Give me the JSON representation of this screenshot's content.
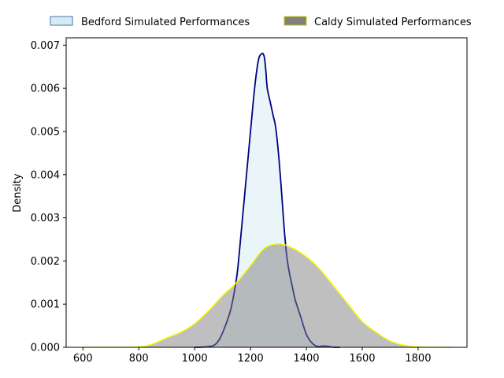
{
  "chart_data": {
    "type": "area",
    "title": "",
    "xlabel": "",
    "ylabel": "Density",
    "xlim": [
      540,
      1975
    ],
    "ylim": [
      0,
      0.00717
    ],
    "xticks": [
      600,
      800,
      1000,
      1200,
      1400,
      1600,
      1800
    ],
    "yticks": [
      0.0,
      0.001,
      0.002,
      0.003,
      0.004,
      0.005,
      0.006,
      0.007
    ],
    "ytick_labels": [
      "0.000",
      "0.001",
      "0.002",
      "0.003",
      "0.004",
      "0.005",
      "0.006",
      "0.007"
    ],
    "grid": false,
    "legend_position": "top, outside plot, horizontal",
    "series": [
      {
        "name": "Bedford Simulated Performances",
        "line_color": "#000080",
        "fill_color": "#add8e6",
        "fill_opacity": 0.25,
        "x": [
          1000,
          1040,
          1070,
          1090,
          1110,
          1130,
          1150,
          1160,
          1170,
          1180,
          1190,
          1200,
          1210,
          1220,
          1230,
          1240,
          1245,
          1250,
          1255,
          1260,
          1270,
          1280,
          1290,
          1300,
          1310,
          1320,
          1330,
          1340,
          1350,
          1360,
          1380,
          1400,
          1420,
          1440,
          1460,
          1480,
          1500,
          1520
        ],
        "y": [
          0.0,
          1e-05,
          5e-05,
          0.0002,
          0.0005,
          0.0009,
          0.0016,
          0.0022,
          0.0029,
          0.0036,
          0.0043,
          0.005,
          0.0057,
          0.0063,
          0.0067,
          0.0068,
          0.0068,
          0.0067,
          0.0064,
          0.006,
          0.0057,
          0.0054,
          0.0051,
          0.0045,
          0.0037,
          0.0028,
          0.0021,
          0.0017,
          0.0014,
          0.0011,
          0.0007,
          0.0003,
          0.0001,
          2e-05,
          3e-05,
          2e-05,
          0.0,
          0.0
        ]
      },
      {
        "name": "Caldy Simulated Performances",
        "line_color": "#ffff00",
        "fill_color": "#808080",
        "fill_opacity": 0.5,
        "x": [
          600,
          700,
          800,
          850,
          900,
          950,
          1000,
          1050,
          1100,
          1150,
          1200,
          1250,
          1300,
          1350,
          1400,
          1450,
          1500,
          1550,
          1600,
          1650,
          1700,
          1750,
          1800,
          1850,
          1900,
          1920
        ],
        "y": [
          0.0,
          0.0,
          1e-05,
          8e-05,
          0.00022,
          0.00035,
          0.00055,
          0.00085,
          0.0012,
          0.0015,
          0.0019,
          0.0023,
          0.0024,
          0.0023,
          0.0021,
          0.0018,
          0.0014,
          0.001,
          0.0006,
          0.00035,
          0.00015,
          5e-05,
          1e-05,
          0.0,
          0.0,
          0.0
        ]
      }
    ]
  }
}
